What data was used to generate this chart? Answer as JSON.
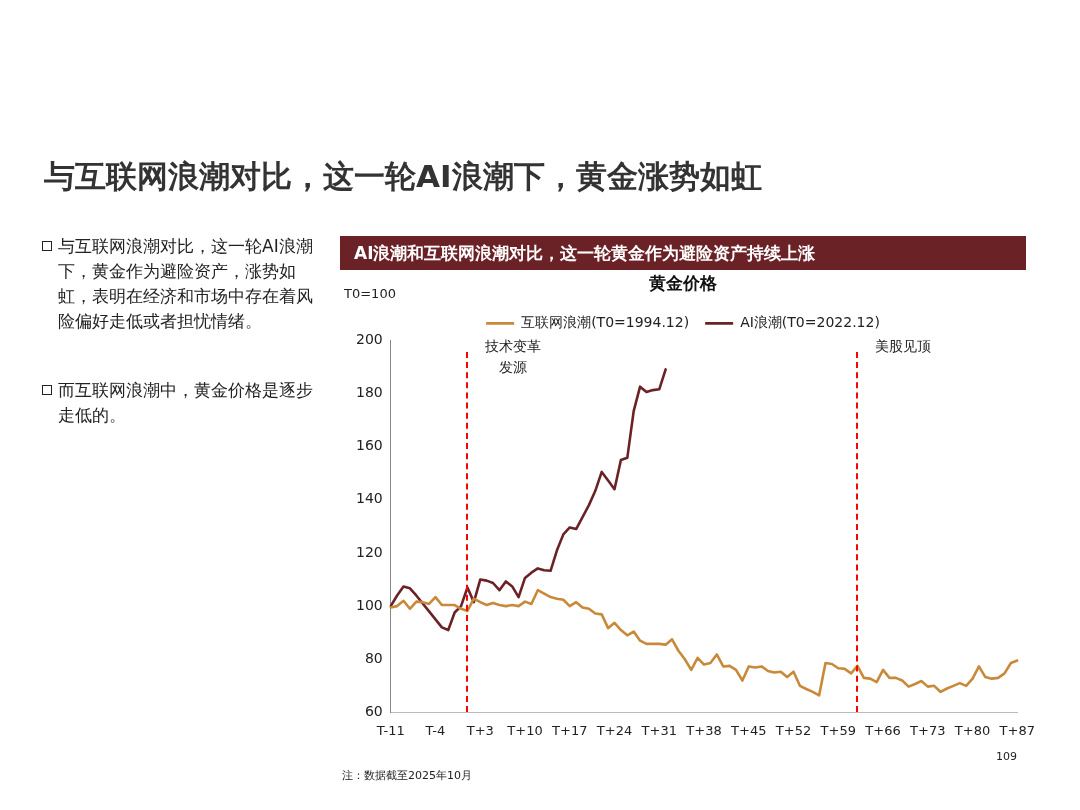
{
  "chart_data": {
    "type": "line",
    "title": "黄金价格",
    "subtitle": "AI浪潮和互联网浪潮对比，这一轮黄金作为避险资产持续上涨",
    "ylabel": "T0=100",
    "annotations": [
      "与互联网浪潮对比，这一轮AI浪潮下，黄金涨势如虹",
      "与互联网浪潮对比，这一轮AI浪潮下，黄金作为避险资产，涨势如虹，表明在经济和市场中存在着风险偏好走低或者担忧情绪。",
      "而互联网浪潮中，黄金价格是逐步走低的。",
      "注：数据截至2025年10月",
      "109",
      "技术变革发源",
      "美股见顶"
    ],
    "categories": [
      "T-11",
      null,
      null,
      null,
      null,
      null,
      null,
      "T-4",
      null,
      null,
      null,
      null,
      null,
      null,
      "T+3",
      null,
      null,
      null,
      null,
      null,
      null,
      "T+10",
      null,
      null,
      null,
      null,
      null,
      null,
      "T+17",
      null,
      null,
      null,
      null,
      null,
      null,
      "T+24",
      null,
      null,
      null,
      null,
      null,
      null,
      "T+31",
      null,
      null,
      null,
      null,
      null,
      null,
      "T+38",
      null,
      null,
      null,
      null,
      null,
      null,
      "T+45",
      null,
      null,
      null,
      null,
      null,
      null,
      "T+52",
      null,
      null,
      null,
      null,
      null,
      null,
      "T+59",
      null,
      null,
      null,
      null,
      null,
      null,
      "T+66",
      null,
      null,
      null,
      null,
      null,
      null,
      "T+73",
      null,
      null,
      null,
      null,
      null,
      null,
      "T+80",
      null,
      null,
      null,
      null,
      null,
      null,
      "T+87"
    ],
    "series": [
      {
        "name": "互联网浪潮(T0=1994.12)",
        "color": "#c8893a",
        "values": [
          99.5,
          100,
          102,
          99,
          101.7,
          101.5,
          100.8,
          103.4,
          100.4,
          100.4,
          100.4,
          99,
          98.2,
          102.8,
          101.5,
          100.4,
          101.2,
          100.4,
          100,
          100.4,
          100,
          101.7,
          100.8,
          106,
          104.7,
          103.4,
          102.8,
          102.4,
          100,
          101.5,
          99.5,
          99,
          97.2,
          96.9,
          91.7,
          93.7,
          91,
          89,
          90.4,
          87,
          85.8,
          85.8,
          85.8,
          85.5,
          87.5,
          83.2,
          80,
          76,
          80.5,
          78,
          78.6,
          81.8,
          77.3,
          77.5,
          76,
          72,
          77.3,
          76.9,
          77.3,
          75.6,
          75,
          75.3,
          73.3,
          75.3,
          70,
          68.8,
          67.7,
          66.4,
          78.6,
          78.2,
          76.6,
          76.4,
          74.7,
          77.5,
          73,
          72.7,
          71.4,
          76,
          73,
          73,
          72,
          69.7,
          70.7,
          71.8,
          69.7,
          70,
          67.7,
          69,
          70,
          71,
          70,
          72.7,
          77.3,
          73.3,
          72.7,
          73,
          74.7,
          78.6,
          79.5
        ]
      },
      {
        "name": "AI浪潮(T0=2022.12)",
        "color": "#6b2226",
        "values": [
          100,
          104,
          107.4,
          106.7,
          104,
          101,
          98,
          95,
          92,
          91,
          97.6,
          100,
          107,
          101.5,
          110,
          109.6,
          108.7,
          106,
          109.3,
          107.4,
          103.4,
          110.6,
          112.6,
          114.2,
          113.5,
          113.3,
          121,
          127,
          129.6,
          129,
          133.5,
          138,
          143.4,
          150.5,
          147.3,
          144,
          155,
          155.8,
          173.4,
          182.6,
          180.6,
          181.3,
          181.6,
          189.1,
          null,
          null,
          null,
          null,
          null,
          null,
          null,
          null,
          null,
          null,
          null,
          null,
          null,
          null,
          null,
          null,
          null,
          null,
          null,
          null,
          null,
          null,
          null,
          null,
          null,
          null,
          null,
          null,
          null,
          null,
          null,
          null,
          null,
          null,
          null,
          null,
          null,
          null,
          null,
          null,
          null,
          null,
          null,
          null,
          null,
          null,
          null,
          null,
          null,
          null,
          null,
          null,
          null,
          null,
          null
        ]
      }
    ],
    "ylim": [
      60,
      200
    ],
    "yticks": [
      60,
      80,
      100,
      120,
      140,
      160,
      180,
      200
    ],
    "legend": "top",
    "marker": "none",
    "line_style": "solid",
    "grid": false
  }
}
